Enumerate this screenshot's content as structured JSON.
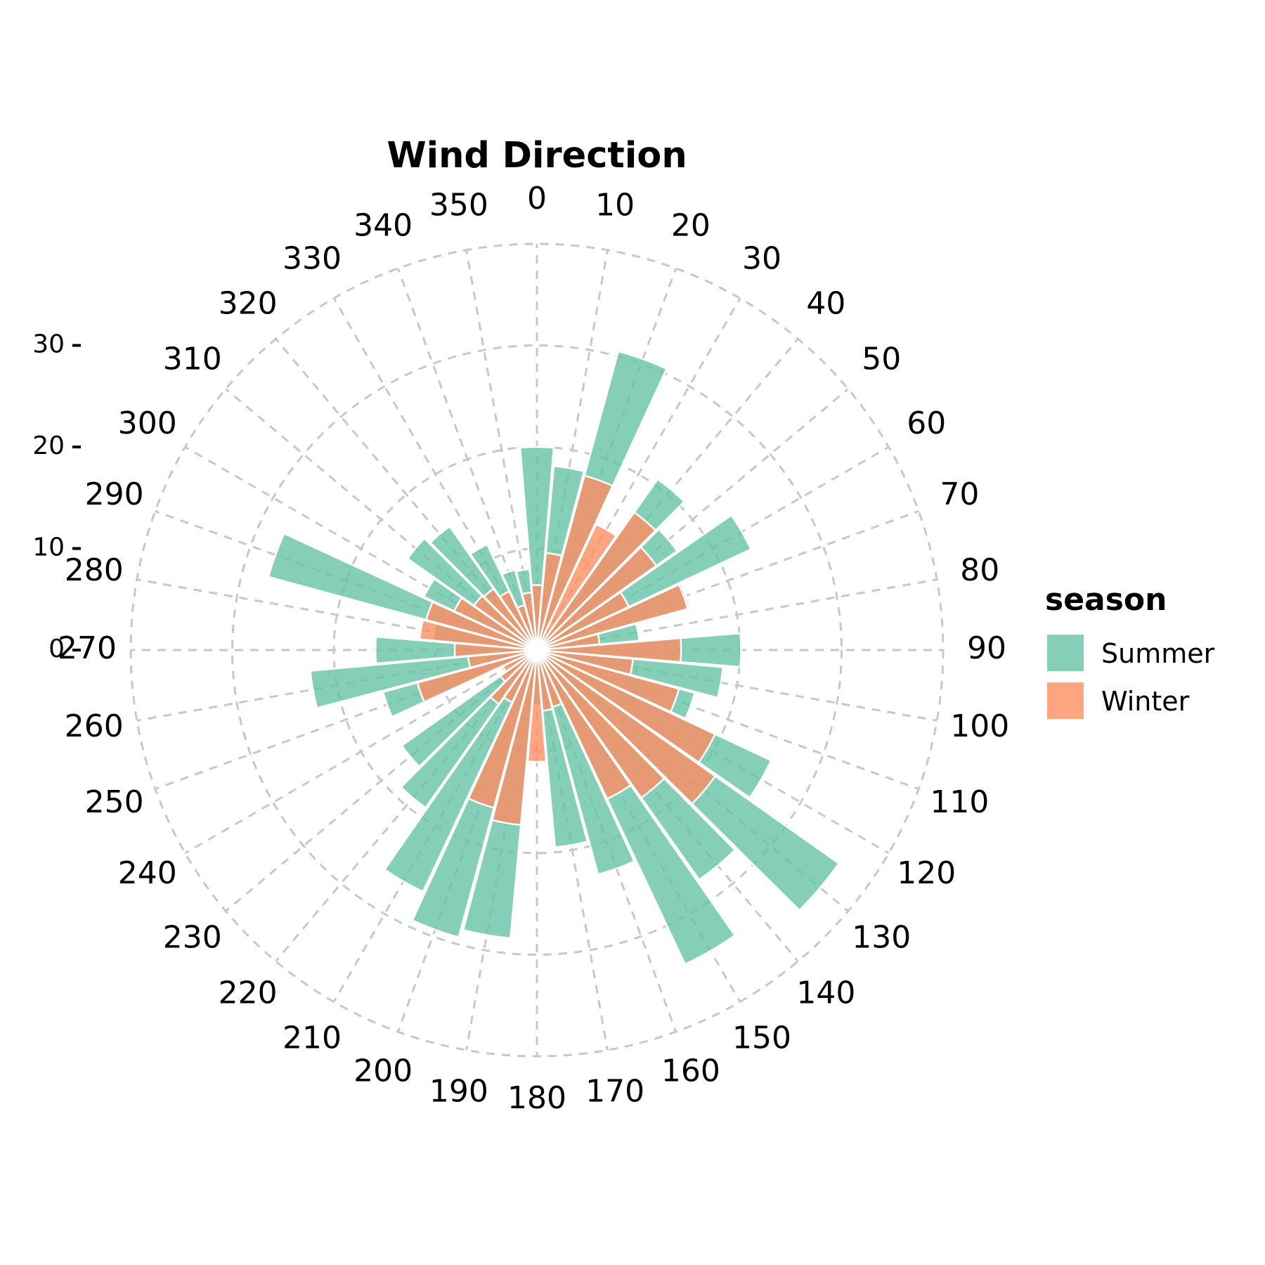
{
  "chart_data": {
    "type": "bar",
    "subtype": "polar",
    "title": "Wind Direction",
    "angle_unit": "degrees",
    "direction": "clockwise",
    "zero_at": "top",
    "categories": [
      0,
      10,
      20,
      30,
      40,
      50,
      60,
      70,
      80,
      90,
      100,
      110,
      120,
      130,
      140,
      150,
      160,
      170,
      180,
      190,
      200,
      210,
      220,
      230,
      240,
      250,
      260,
      270,
      280,
      290,
      300,
      310,
      320,
      330,
      340,
      350
    ],
    "angle_tick_labels": [
      "0",
      "10",
      "20",
      "30",
      "40",
      "50",
      "60",
      "70",
      "80",
      "90",
      "100",
      "110",
      "120",
      "130",
      "140",
      "150",
      "160",
      "170",
      "180",
      "190",
      "200",
      "210",
      "220",
      "230",
      "240",
      "250",
      "260",
      "270",
      "280",
      "290",
      "300",
      "310",
      "320",
      "330",
      "340",
      "350"
    ],
    "radial_ticks": [
      0,
      10,
      20,
      30
    ],
    "radial_tick_labels": [
      "0",
      "10",
      "20",
      "30"
    ],
    "rlim": [
      0,
      40
    ],
    "bar_width_degrees": 9.5,
    "grid": true,
    "legend": {
      "title": "season",
      "position": "right"
    },
    "series": [
      {
        "name": "Summer",
        "color": "#66c2a5",
        "opacity": 0.8,
        "values": [
          20.0,
          18.2,
          30.5,
          2.5,
          20.6,
          16.9,
          23.3,
          15.6,
          10.1,
          20.1,
          18.4,
          16.1,
          25.5,
          36.4,
          27.7,
          34.2,
          22.9,
          19.5,
          5.4,
          28.5,
          29.3,
          26.3,
          19.0,
          16.3,
          3.3,
          15.7,
          22.4,
          15.9,
          10.3,
          27.4,
          12.3,
          15.6,
          14.9,
          11.5,
          8.2,
          8.0
        ]
      },
      {
        "name": "Winter",
        "color": "#fc8d62",
        "opacity": 0.8,
        "values": [
          6.4,
          9.6,
          17.8,
          13.7,
          16.6,
          14.4,
          10.0,
          15.4,
          6.2,
          14.2,
          9.5,
          14.5,
          19.4,
          21.5,
          17.8,
          16.2,
          5.8,
          6.0,
          11.0,
          17.3,
          16.1,
          5.7,
          6.5,
          4.4,
          3.7,
          12.2,
          6.8,
          8.1,
          11.6,
          11.3,
          9.0,
          7.6,
          7.4,
          6.4,
          4.6,
          5.7
        ]
      }
    ]
  }
}
